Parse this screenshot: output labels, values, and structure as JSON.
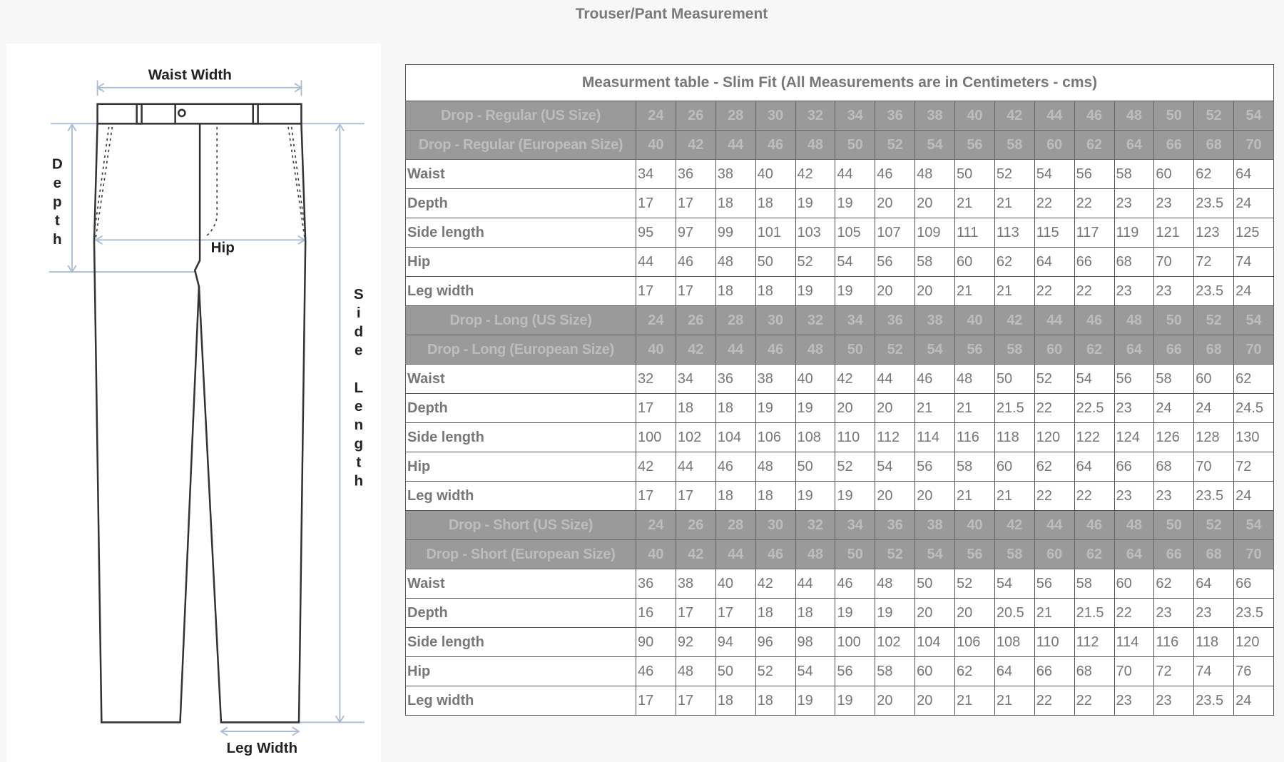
{
  "title": "Trouser/Pant Measurement",
  "diagram": {
    "labels": {
      "waist_width": "Waist Width",
      "depth": "Depth",
      "hip": "Hip",
      "side_length": "Side Length",
      "leg_width": "Leg Width"
    },
    "line_color": "#a9bdd6"
  },
  "table": {
    "caption": "Measurment table - Slim Fit (All Measurements are in Centimeters - cms)",
    "header_bg": "#9a9a9a",
    "sections": [
      {
        "us_label": "Drop - Regular (US Size)",
        "us_sizes": [
          "24",
          "26",
          "28",
          "30",
          "32",
          "34",
          "36",
          "38",
          "40",
          "42",
          "44",
          "46",
          "48",
          "50",
          "52",
          "54"
        ],
        "eu_label": "Drop - Regular (European Size)",
        "eu_sizes": [
          "40",
          "42",
          "44",
          "46",
          "48",
          "50",
          "52",
          "54",
          "56",
          "58",
          "60",
          "62",
          "64",
          "66",
          "68",
          "70"
        ],
        "rows": [
          {
            "label": "Waist",
            "values": [
              "34",
              "36",
              "38",
              "40",
              "42",
              "44",
              "46",
              "48",
              "50",
              "52",
              "54",
              "56",
              "58",
              "60",
              "62",
              "64"
            ]
          },
          {
            "label": "Depth",
            "values": [
              "17",
              "17",
              "18",
              "18",
              "19",
              "19",
              "20",
              "20",
              "21",
              "21",
              "22",
              "22",
              "23",
              "23",
              "23.5",
              "24"
            ]
          },
          {
            "label": "Side length",
            "values": [
              "95",
              "97",
              "99",
              "101",
              "103",
              "105",
              "107",
              "109",
              "111",
              "113",
              "115",
              "117",
              "119",
              "121",
              "123",
              "125"
            ]
          },
          {
            "label": "Hip",
            "values": [
              "44",
              "46",
              "48",
              "50",
              "52",
              "54",
              "56",
              "58",
              "60",
              "62",
              "64",
              "66",
              "68",
              "70",
              "72",
              "74"
            ]
          },
          {
            "label": "Leg width",
            "values": [
              "17",
              "17",
              "18",
              "18",
              "19",
              "19",
              "20",
              "20",
              "21",
              "21",
              "22",
              "22",
              "23",
              "23",
              "23.5",
              "24"
            ]
          }
        ]
      },
      {
        "us_label": "Drop - Long (US Size)",
        "us_sizes": [
          "24",
          "26",
          "28",
          "30",
          "32",
          "34",
          "36",
          "38",
          "40",
          "42",
          "44",
          "46",
          "48",
          "50",
          "52",
          "54"
        ],
        "eu_label": "Drop - Long (European Size)",
        "eu_sizes": [
          "40",
          "42",
          "44",
          "46",
          "48",
          "50",
          "52",
          "54",
          "56",
          "58",
          "60",
          "62",
          "64",
          "66",
          "68",
          "70"
        ],
        "rows": [
          {
            "label": "Waist",
            "values": [
              "32",
              "34",
              "36",
              "38",
              "40",
              "42",
              "44",
              "46",
              "48",
              "50",
              "52",
              "54",
              "56",
              "58",
              "60",
              "62"
            ]
          },
          {
            "label": "Depth",
            "values": [
              "17",
              "18",
              "18",
              "19",
              "19",
              "20",
              "20",
              "21",
              "21",
              "21.5",
              "22",
              "22.5",
              "23",
              "24",
              "24",
              "24.5"
            ]
          },
          {
            "label": "Side length",
            "values": [
              "100",
              "102",
              "104",
              "106",
              "108",
              "110",
              "112",
              "114",
              "116",
              "118",
              "120",
              "122",
              "124",
              "126",
              "128",
              "130"
            ]
          },
          {
            "label": "Hip",
            "values": [
              "42",
              "44",
              "46",
              "48",
              "50",
              "52",
              "54",
              "56",
              "58",
              "60",
              "62",
              "64",
              "66",
              "68",
              "70",
              "72"
            ]
          },
          {
            "label": "Leg width",
            "values": [
              "17",
              "17",
              "18",
              "18",
              "19",
              "19",
              "20",
              "20",
              "21",
              "21",
              "22",
              "22",
              "23",
              "23",
              "23.5",
              "24"
            ]
          }
        ]
      },
      {
        "us_label": "Drop - Short (US Size)",
        "us_sizes": [
          "24",
          "26",
          "28",
          "30",
          "32",
          "34",
          "36",
          "38",
          "40",
          "42",
          "44",
          "46",
          "48",
          "50",
          "52",
          "54"
        ],
        "eu_label": "Drop - Short (European Size)",
        "eu_sizes": [
          "40",
          "42",
          "44",
          "46",
          "48",
          "50",
          "52",
          "54",
          "56",
          "58",
          "60",
          "62",
          "64",
          "66",
          "68",
          "70"
        ],
        "rows": [
          {
            "label": "Waist",
            "values": [
              "36",
              "38",
              "40",
              "42",
              "44",
              "46",
              "48",
              "50",
              "52",
              "54",
              "56",
              "58",
              "60",
              "62",
              "64",
              "66"
            ]
          },
          {
            "label": "Depth",
            "values": [
              "16",
              "17",
              "17",
              "18",
              "18",
              "19",
              "19",
              "20",
              "20",
              "20.5",
              "21",
              "21.5",
              "22",
              "23",
              "23",
              "23.5"
            ]
          },
          {
            "label": "Side length",
            "values": [
              "90",
              "92",
              "94",
              "96",
              "98",
              "100",
              "102",
              "104",
              "106",
              "108",
              "110",
              "112",
              "114",
              "116",
              "118",
              "120"
            ]
          },
          {
            "label": "Hip",
            "values": [
              "46",
              "48",
              "50",
              "52",
              "54",
              "56",
              "58",
              "60",
              "62",
              "64",
              "66",
              "68",
              "70",
              "72",
              "74",
              "76"
            ]
          },
          {
            "label": "Leg width",
            "values": [
              "17",
              "17",
              "18",
              "18",
              "19",
              "19",
              "20",
              "20",
              "21",
              "21",
              "22",
              "22",
              "23",
              "23",
              "23.5",
              "24"
            ]
          }
        ]
      }
    ]
  }
}
